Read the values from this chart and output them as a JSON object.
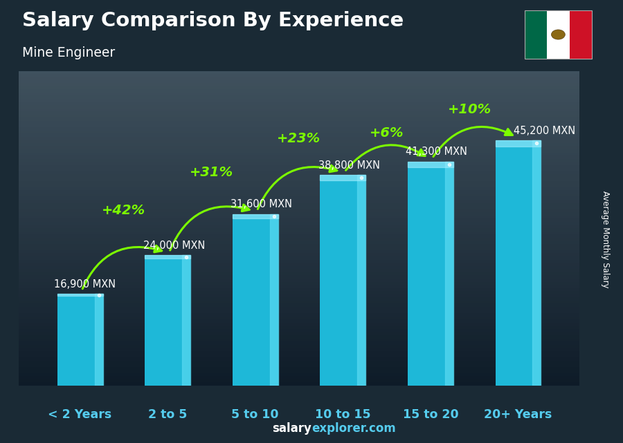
{
  "title": "Salary Comparison By Experience",
  "subtitle": "Mine Engineer",
  "categories": [
    "< 2 Years",
    "2 to 5",
    "5 to 10",
    "10 to 15",
    "15 to 20",
    "20+ Years"
  ],
  "values": [
    16900,
    24000,
    31600,
    38800,
    41300,
    45200
  ],
  "value_labels": [
    "16,900 MXN",
    "24,000 MXN",
    "31,600 MXN",
    "38,800 MXN",
    "41,300 MXN",
    "45,200 MXN"
  ],
  "pct_labels": [
    "+42%",
    "+31%",
    "+23%",
    "+6%",
    "+10%"
  ],
  "bar_color_main": "#1EB8D8",
  "bar_color_right": "#55D8F0",
  "bar_color_top": "#A0EEFF",
  "pct_color": "#7CFC00",
  "val_label_color": "#FFFFFF",
  "cat_label_color": "#55CCEE",
  "ylabel": "Average Monthly Salary",
  "footer_left": "salary",
  "footer_right": "explorer.com",
  "footer_color_left": "#FFFFFF",
  "footer_color_right": "#55CCEE",
  "bg_top": "#3a4a55",
  "bg_bottom": "#0a1520",
  "ylim": [
    0,
    58000
  ],
  "figsize": [
    9.0,
    6.41
  ],
  "dpi": 100,
  "bar_width": 0.52,
  "val_label_offsets_x": [
    -0.3,
    -0.28,
    -0.28,
    -0.28,
    -0.28,
    -0.05
  ],
  "val_label_offsets_y": [
    800,
    800,
    800,
    800,
    800,
    800
  ],
  "pct_arc_heights": [
    7000,
    6500,
    5500,
    4000,
    4500
  ],
  "pct_x_offsets": [
    0.0,
    0.0,
    0.0,
    0.0,
    -0.05
  ]
}
